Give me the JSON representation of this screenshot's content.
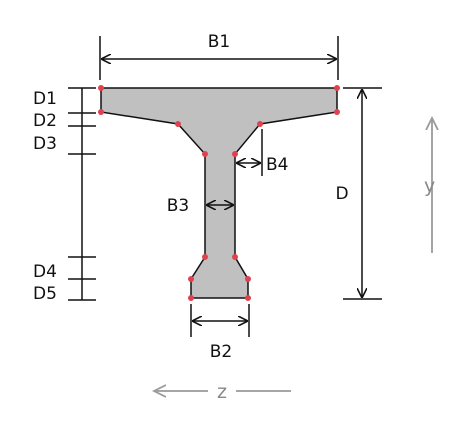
{
  "labels": {
    "B1": "B1",
    "B2": "B2",
    "B3": "B3",
    "B4": "B4",
    "D": "D",
    "D1": "D1",
    "D2": "D2",
    "D3": "D3",
    "D4": "D4",
    "D5": "D5"
  },
  "axes": {
    "y": "y",
    "z": "z"
  },
  "colors": {
    "section_fill": "#c0c0c0",
    "outline": "#111111",
    "vertex": "#e0414f",
    "axis": "#9a9a9a"
  }
}
